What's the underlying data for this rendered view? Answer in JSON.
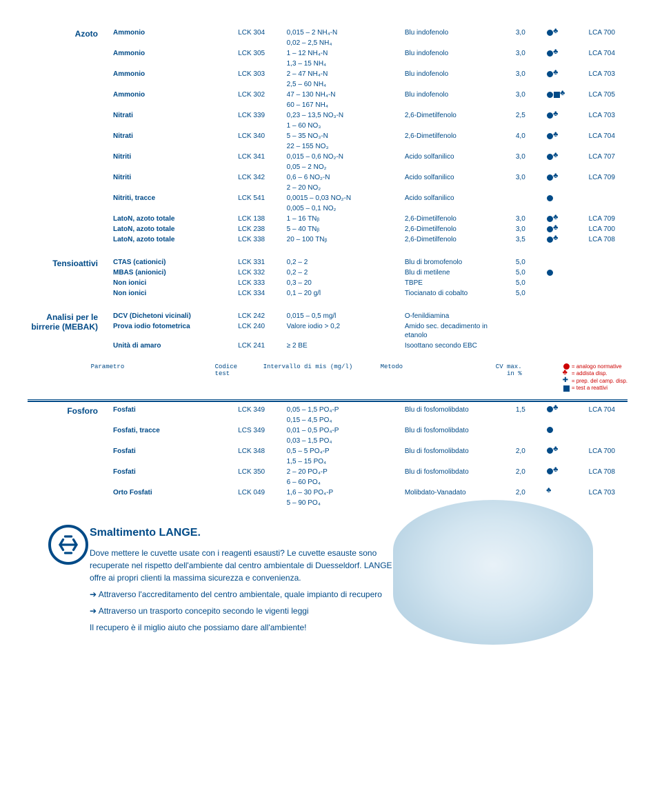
{
  "colors": {
    "primary": "#004a87",
    "accent_red": "#c00000",
    "bg": "#ffffff"
  },
  "azoto": {
    "label": "Azoto",
    "rows": [
      {
        "name": "Ammonio",
        "code": "LCK 304",
        "range": "0,015 – 2 NH₄-N",
        "range2": "0,02 – 2,5 NH₄",
        "method": "Blu indofenolo",
        "cv": "3,0",
        "icons": [
          "circle",
          "club"
        ],
        "lca": "LCA 700"
      },
      {
        "name": "Ammonio",
        "code": "LCK 305",
        "range": "1 – 12 NH₄-N",
        "range2": "1,3 – 15 NH₄",
        "method": "Blu indofenolo",
        "cv": "3,0",
        "icons": [
          "circle",
          "club"
        ],
        "lca": "LCA 704"
      },
      {
        "name": "Ammonio",
        "code": "LCK 303",
        "range": "2 – 47 NH₄-N",
        "range2": "2,5 – 60 NH₄",
        "method": "Blu indofenolo",
        "cv": "3,0",
        "icons": [
          "circle",
          "club"
        ],
        "lca": "LCA 703"
      },
      {
        "name": "Ammonio",
        "code": "LCK 302",
        "range": "47 – 130 NH₄-N",
        "range2": "60 – 167 NH₄",
        "method": "Blu indofenolo",
        "cv": "3,0",
        "icons": [
          "circle",
          "square",
          "club"
        ],
        "lca": "LCA 705"
      },
      {
        "name": "Nitrati",
        "code": "LCK 339",
        "range": "0,23 – 13,5 NO₃-N",
        "range2": "1 – 60 NO₃",
        "method": "2,6-Dimetilfenolo",
        "cv": "2,5",
        "icons": [
          "circle",
          "club"
        ],
        "lca": "LCA 703"
      },
      {
        "name": "Nitrati",
        "code": "LCK 340",
        "range": "5 – 35 NO₃-N",
        "range2": "22 – 155 NO₃",
        "method": "2,6-Dimetilfenolo",
        "cv": "4,0",
        "icons": [
          "circle",
          "club"
        ],
        "lca": "LCA 704"
      },
      {
        "name": "Nitriti",
        "code": "LCK 341",
        "range": "0,015 – 0,6 NO₂-N",
        "range2": "0,05 – 2 NO₂",
        "method": "Acido solfanilico",
        "cv": "3,0",
        "icons": [
          "circle",
          "club"
        ],
        "lca": "LCA 707"
      },
      {
        "name": "Nitriti",
        "code": "LCK 342",
        "range": "0,6 – 6 NO₂-N",
        "range2": "2 – 20 NO₂",
        "method": "Acido solfanilico",
        "cv": "3,0",
        "icons": [
          "circle",
          "club"
        ],
        "lca": "LCA 709"
      },
      {
        "name": "Nitriti, tracce",
        "code": "LCK 541",
        "range": "0,0015 – 0,03 NO₂-N",
        "range2": "0,005 – 0,1 NO₂",
        "method": "Acido solfanilico",
        "cv": "",
        "icons": [
          "circle"
        ],
        "lca": ""
      },
      {
        "name": "LatoN, azoto totale",
        "code": "LCK 138",
        "range": "1 – 16 TNᵦ",
        "range2": "",
        "method": "2,6-Dimetilfenolo",
        "cv": "3,0",
        "icons": [
          "circle",
          "club"
        ],
        "lca": "LCA 709"
      },
      {
        "name": "LatoN, azoto totale",
        "code": "LCK 238",
        "range": "5 – 40 TNᵦ",
        "range2": "",
        "method": "2,6-Dimetilfenolo",
        "cv": "3,0",
        "icons": [
          "circle",
          "club"
        ],
        "lca": "LCA 700"
      },
      {
        "name": "LatoN, azoto totale",
        "code": "LCK 338",
        "range": "20 – 100 TNᵦ",
        "range2": "",
        "method": "2,6-Dimetilfenolo",
        "cv": "3,5",
        "icons": [
          "circle",
          "club"
        ],
        "lca": "LCA 708"
      }
    ]
  },
  "tensioattivi": {
    "label": "Tensioattivi",
    "rows": [
      {
        "name": "CTAS (cationici)",
        "code": "LCK 331",
        "range": "0,2 – 2",
        "method": "Blu di bromofenolo",
        "cv": "5,0",
        "icons": [],
        "lca": ""
      },
      {
        "name": "MBAS (anionici)",
        "code": "LCK 332",
        "range": "0,2 – 2",
        "method": "Blu di metilene",
        "cv": "5,0",
        "icons": [
          "circle"
        ],
        "lca": ""
      },
      {
        "name": "Non ionici",
        "code": "LCK 333",
        "range": "0,3 – 20",
        "method": "TBPE",
        "cv": "5,0",
        "icons": [],
        "lca": ""
      },
      {
        "name": "Non ionici",
        "code": "LCK 334",
        "range": "0,1 – 20 g/l",
        "method": "Tiocianato di cobalto",
        "cv": "5,0",
        "icons": [],
        "lca": ""
      }
    ]
  },
  "analisi": {
    "label": "Analisi per le birrerie (MEBAK)",
    "rows": [
      {
        "name": "DCV (Dichetoni vicinali)",
        "code": "LCK 242",
        "range": "0,015 – 0,5 mg/l",
        "method": "O-fenildiamina",
        "cv": "",
        "icons": [],
        "lca": ""
      },
      {
        "name": "Prova iodio fotometrica",
        "code": "LCK 240",
        "range": "Valore iodio > 0,2",
        "method": "Amido sec. decadimento in etanolo",
        "cv": "",
        "icons": [],
        "lca": ""
      },
      {
        "name": "Unità di amaro",
        "code": "LCK 241",
        "range": "≥ 2 BE",
        "method": "Isoottano secondo EBC",
        "cv": "",
        "icons": [],
        "lca": ""
      }
    ]
  },
  "legend": {
    "param": "Parametro",
    "code": "Codice",
    "code2": "test",
    "range": "Intervallo di mis (mg/l)",
    "method": "Metodo",
    "cv": "CV max.",
    "cv2": "in %",
    "keys": [
      {
        "icon": "circle",
        "text": "= analogo normative"
      },
      {
        "icon": "club",
        "text": "= addista disp."
      },
      {
        "icon": "plus",
        "text": "= prep. del camp. disp."
      },
      {
        "icon": "square",
        "text": "= test a reattivi"
      }
    ]
  },
  "fosforo": {
    "label": "Fosforo",
    "rows": [
      {
        "name": "Fosfati",
        "code": "LCK 349",
        "range": "0,05 – 1,5 PO₄-P",
        "range2": "0,15 – 4,5 PO₄",
        "method": "Blu di fosfomolibdato",
        "cv": "1,5",
        "icons": [
          "circle",
          "club"
        ],
        "lca": "LCA 704"
      },
      {
        "name": "Fosfati, tracce",
        "code": "LCS 349",
        "range": "0,01 – 0,5 PO₄-P",
        "range2": "0,03 – 1,5 PO₄",
        "method": "Blu di fosfomolibdato",
        "cv": "",
        "icons": [
          "circle"
        ],
        "lca": ""
      },
      {
        "name": "Fosfati",
        "code": "LCK 348",
        "range": "0,5 – 5 PO₄-P",
        "range2": "1,5 – 15  PO₄",
        "method": "Blu di fosfomolibdato",
        "cv": "2,0",
        "icons": [
          "circle",
          "club"
        ],
        "lca": "LCA 700"
      },
      {
        "name": "Fosfati",
        "code": "LCK 350",
        "range": "2 – 20 PO₄-P",
        "range2": "6 – 60  PO₄",
        "method": "Blu di fosfomolibdato",
        "cv": "2,0",
        "icons": [
          "circle",
          "club"
        ],
        "lca": "LCA 708"
      },
      {
        "name": "Orto Fosfati",
        "code": "LCK 049",
        "range": "1,6 – 30 PO₄-P",
        "range2": "5 – 90  PO₄",
        "method": "Molibdato-Vanadato",
        "cv": "2,0",
        "icons": [
          "club"
        ],
        "lca": "LCA 703"
      }
    ]
  },
  "footer": {
    "title": "Smaltimento LANGE.",
    "p1": "Dove mettere le cuvette usate con i reagenti esausti? Le cuvette esauste sono recuperate nel rispetto dell'ambiente dal centro ambientale di Duesseldorf. LANGE offre ai propri clienti la massima sicurezza e convenienza.",
    "b1": "Attraverso l'accreditamento del centro ambientale, quale impianto di recupero",
    "b2": "Attraverso un trasporto concepito secondo le vigenti leggi",
    "p2": "Il recupero è il miglio aiuto che possiamo dare all'ambiente!"
  }
}
